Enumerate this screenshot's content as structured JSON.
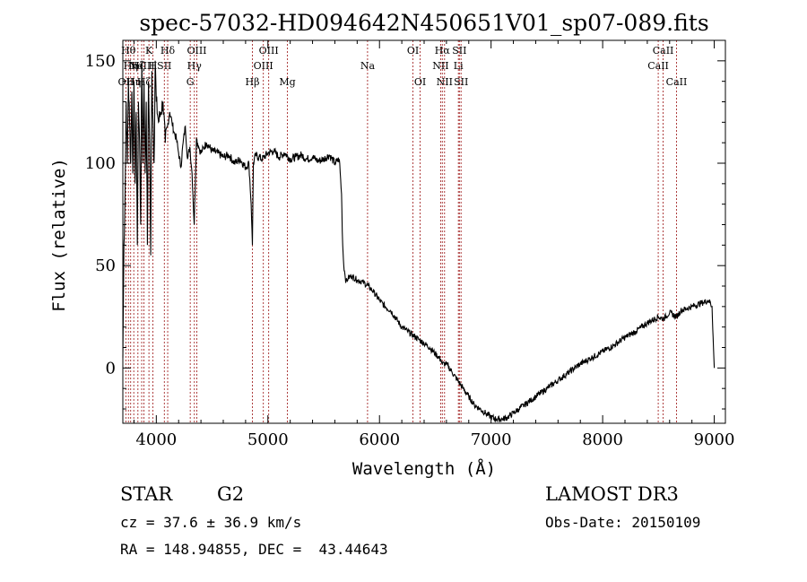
{
  "chart_data": {
    "type": "line",
    "title": "spec-57032-HD094642N450651V01_sp07-089.fits",
    "xlabel": "Wavelength (Å)",
    "ylabel": "Flux (relative)",
    "xlim": [
      3700,
      9100
    ],
    "ylim": [
      -27,
      160
    ],
    "xticks": [
      4000,
      5000,
      6000,
      7000,
      8000,
      9000
    ],
    "yticks": [
      0,
      50,
      100,
      150
    ],
    "series": [
      {
        "name": "flux",
        "x": [
          3700,
          3710,
          3720,
          3730,
          3740,
          3750,
          3760,
          3770,
          3780,
          3790,
          3800,
          3810,
          3820,
          3830,
          3840,
          3850,
          3860,
          3870,
          3880,
          3890,
          3900,
          3910,
          3920,
          3930,
          3940,
          3950,
          3960,
          3970,
          3980,
          3990,
          4000,
          4020,
          4040,
          4060,
          4080,
          4100,
          4120,
          4140,
          4160,
          4180,
          4200,
          4220,
          4240,
          4260,
          4280,
          4300,
          4320,
          4340,
          4360,
          4380,
          4400,
          4450,
          4500,
          4550,
          4600,
          4650,
          4700,
          4750,
          4800,
          4830,
          4850,
          4861,
          4870,
          4890,
          4920,
          4950,
          5000,
          5050,
          5100,
          5150,
          5200,
          5250,
          5300,
          5350,
          5400,
          5450,
          5500,
          5550,
          5600,
          5640,
          5660,
          5670,
          5680,
          5690,
          5700,
          5720,
          5750,
          5800,
          5850,
          5900,
          5950,
          6000,
          6050,
          6100,
          6150,
          6200,
          6250,
          6300,
          6350,
          6400,
          6450,
          6500,
          6550,
          6563,
          6600,
          6650,
          6700,
          6750,
          6800,
          6850,
          6900,
          6950,
          7000,
          7050,
          7100,
          7150,
          7200,
          7250,
          7300,
          7350,
          7400,
          7450,
          7500,
          7600,
          7700,
          7800,
          7900,
          8000,
          8100,
          8200,
          8300,
          8400,
          8500,
          8542,
          8600,
          8662,
          8700,
          8800,
          8900,
          8950,
          8980,
          8990,
          9000
        ],
        "y": [
          5,
          60,
          85,
          130,
          100,
          140,
          120,
          100,
          135,
          95,
          140,
          90,
          125,
          60,
          130,
          110,
          70,
          150,
          100,
          140,
          95,
          130,
          60,
          140,
          110,
          55,
          145,
          120,
          100,
          150,
          130,
          120,
          125,
          130,
          110,
          118,
          125,
          120,
          115,
          112,
          105,
          98,
          110,
          118,
          102,
          108,
          95,
          70,
          112,
          108,
          105,
          110,
          106,
          105,
          103,
          104,
          100,
          102,
          98,
          100,
          80,
          60,
          100,
          104,
          103,
          102,
          105,
          106,
          103,
          105,
          102,
          103,
          104,
          102,
          103,
          101,
          102,
          104,
          100,
          102,
          85,
          60,
          50,
          46,
          42,
          44,
          45,
          43,
          42,
          40,
          37,
          33,
          30,
          28,
          24,
          20,
          18,
          16,
          14,
          12,
          10,
          7,
          4,
          2,
          2,
          -2,
          -6,
          -10,
          -14,
          -18,
          -20,
          -22,
          -24,
          -25,
          -25,
          -24,
          -22,
          -20,
          -18,
          -16,
          -14,
          -12,
          -10,
          -6,
          -2,
          2,
          5,
          8,
          11,
          15,
          18,
          22,
          25,
          24,
          27,
          25,
          28,
          30,
          32,
          33,
          30,
          15,
          0
        ]
      }
    ],
    "lines": [
      {
        "wl": 3727,
        "label": "OII",
        "row": 2
      },
      {
        "wl": 3750,
        "label": "Hθ",
        "row": 0
      },
      {
        "wl": 3770,
        "label": "Hη",
        "row": 1
      },
      {
        "wl": 3798,
        "label": "Hη",
        "row": 2
      },
      {
        "wl": 3835,
        "label": "Hζ",
        "row": 1
      },
      {
        "wl": 3869,
        "label": "NeIII",
        "row": 1
      },
      {
        "wl": 3889,
        "label": "Hζ",
        "row": 2
      },
      {
        "wl": 3934,
        "label": "K",
        "row": 0
      },
      {
        "wl": 3969,
        "label": "H",
        "row": 1
      },
      {
        "wl": 4072,
        "label": "SII",
        "row": 1
      },
      {
        "wl": 4102,
        "label": "Hδ",
        "row": 0
      },
      {
        "wl": 4304,
        "label": "G",
        "row": 2
      },
      {
        "wl": 4341,
        "label": "Hγ",
        "row": 1
      },
      {
        "wl": 4363,
        "label": "OIII",
        "row": 0
      },
      {
        "wl": 4861,
        "label": "Hβ",
        "row": 2
      },
      {
        "wl": 4959,
        "label": "OIII",
        "row": 1
      },
      {
        "wl": 5007,
        "label": "OIII",
        "row": 0
      },
      {
        "wl": 5175,
        "label": "Mg",
        "row": 2
      },
      {
        "wl": 5893,
        "label": "Na",
        "row": 1
      },
      {
        "wl": 6300,
        "label": "OI",
        "row": 0
      },
      {
        "wl": 6364,
        "label": "OI",
        "row": 2
      },
      {
        "wl": 6548,
        "label": "NII",
        "row": 1
      },
      {
        "wl": 6563,
        "label": "Hα",
        "row": 0
      },
      {
        "wl": 6583,
        "label": "NII",
        "row": 2
      },
      {
        "wl": 6707,
        "label": "Li",
        "row": 1
      },
      {
        "wl": 6716,
        "label": "SII",
        "row": 0
      },
      {
        "wl": 6731,
        "label": "SII",
        "row": 2
      },
      {
        "wl": 8498,
        "label": "CaII",
        "row": 1
      },
      {
        "wl": 8542,
        "label": "CaII",
        "row": 0
      },
      {
        "wl": 8662,
        "label": "CaII",
        "row": 2
      }
    ]
  },
  "info": {
    "object_class": "STAR",
    "subclass": "G2",
    "survey": "LAMOST DR3",
    "cz": "cz = 37.6 ± 36.9 km/s",
    "obs_date": "Obs-Date: 20150109",
    "radec": "RA = 148.94855, DEC =  43.44643"
  },
  "colors": {
    "spectrum": "#000000",
    "line_marker": "#a52a2a",
    "axis": "#000000"
  }
}
